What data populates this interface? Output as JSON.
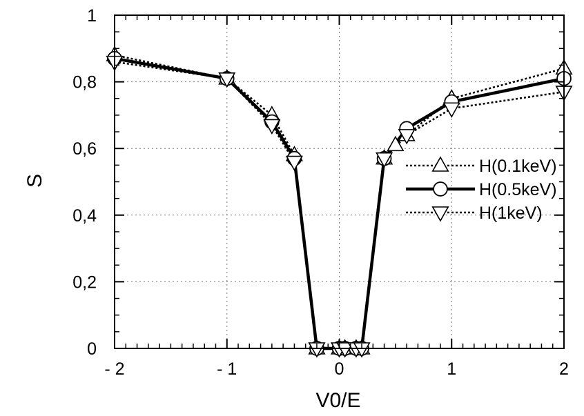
{
  "chart_data": {
    "type": "line",
    "title": "",
    "xlabel": "V0/E",
    "ylabel": "S",
    "xlim": [
      -2,
      2
    ],
    "ylim": [
      0,
      1
    ],
    "x_ticks": [
      -2,
      -1,
      0,
      1,
      2
    ],
    "x_tick_labels": [
      "- 2",
      "- 1",
      "0",
      "1",
      "2"
    ],
    "y_ticks": [
      0,
      0.2,
      0.4,
      0.6,
      0.8,
      1
    ],
    "y_tick_labels": [
      "0",
      "0,2",
      "0,4",
      "0,6",
      "0,8",
      "1"
    ],
    "grid": true,
    "legend_position": "right",
    "series": [
      {
        "name": "H(0.1keV)",
        "line_style": "dotted",
        "marker": "triangle-up",
        "points": [
          [
            -2,
            0.88
          ],
          [
            -1,
            0.81
          ],
          [
            -0.6,
            0.7
          ],
          [
            -0.4,
            0.58
          ],
          [
            -0.2,
            0
          ],
          [
            0,
            0
          ],
          [
            0.05,
            0
          ],
          [
            0.15,
            0
          ],
          [
            0.2,
            0
          ],
          [
            0.4,
            0.57
          ],
          [
            0.5,
            0.61
          ],
          [
            0.6,
            0.64
          ],
          [
            1,
            0.75
          ],
          [
            2,
            0.84
          ]
        ]
      },
      {
        "name": "H(0.5keV)",
        "line_style": "solid",
        "marker": "circle",
        "points": [
          [
            -2,
            0.87
          ],
          [
            -1,
            0.81
          ],
          [
            -0.6,
            0.68
          ],
          [
            -0.4,
            0.57
          ],
          [
            -0.2,
            0
          ],
          [
            0,
            0
          ],
          [
            0.05,
            0
          ],
          [
            0.15,
            0
          ],
          [
            0.2,
            0
          ],
          [
            0.4,
            0.57
          ],
          [
            0.6,
            0.66
          ],
          [
            1,
            0.74
          ],
          [
            2,
            0.81
          ]
        ]
      },
      {
        "name": "H(1keV)",
        "line_style": "dotted",
        "marker": "triangle-down",
        "points": [
          [
            -2,
            0.86
          ],
          [
            -1,
            0.81
          ],
          [
            -0.6,
            0.67
          ],
          [
            -0.4,
            0.56
          ],
          [
            -0.2,
            0
          ],
          [
            0,
            0
          ],
          [
            0.05,
            0
          ],
          [
            0.15,
            0
          ],
          [
            0.2,
            0
          ],
          [
            0.4,
            0.57
          ],
          [
            0.6,
            0.64
          ],
          [
            1,
            0.72
          ],
          [
            2,
            0.77
          ]
        ]
      }
    ]
  }
}
